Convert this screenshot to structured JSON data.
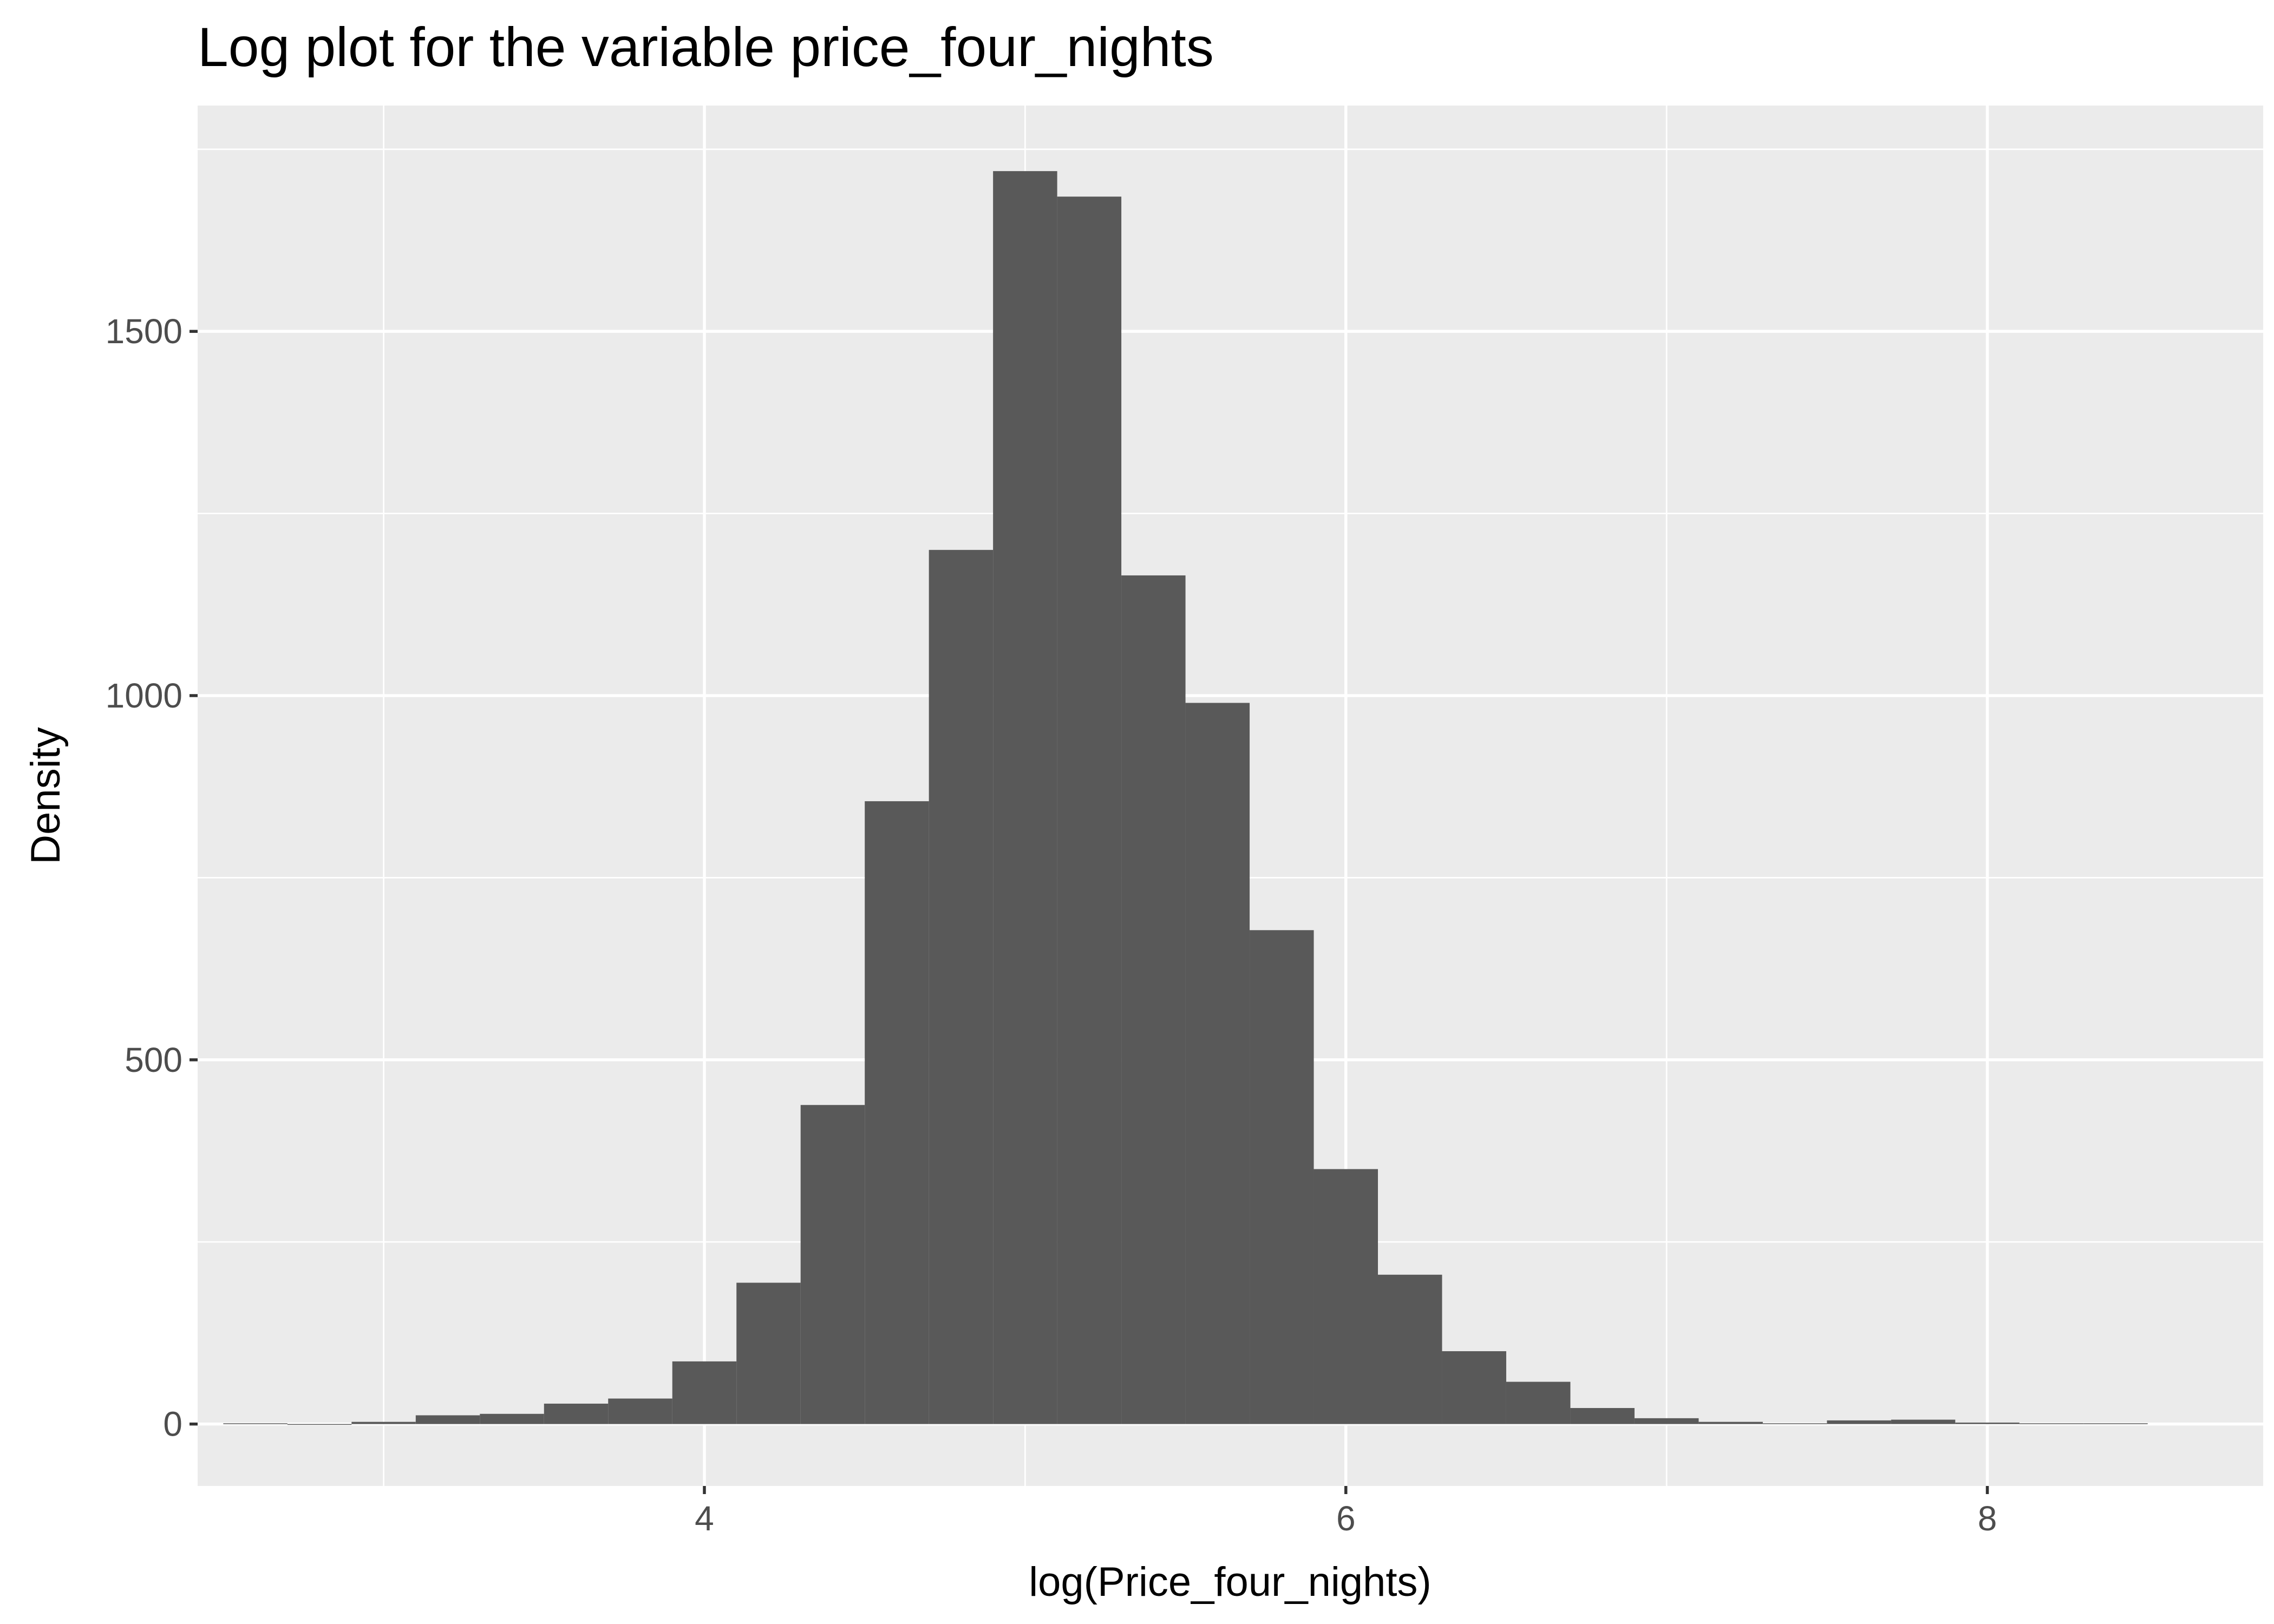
{
  "chart_data": {
    "type": "bar",
    "title": "Log plot for the variable price_four_nights",
    "xlabel": "log(Price_four_nights)",
    "ylabel": "Density",
    "xlim": [
      2.42,
      8.86
    ],
    "ylim": [
      -85,
      1810
    ],
    "x_ticks": [
      4,
      6,
      8
    ],
    "x_minor_ticks": [
      3,
      5,
      7
    ],
    "x_tick_labels": [
      "4",
      "6",
      "8"
    ],
    "y_ticks": [
      0,
      500,
      1000,
      1500
    ],
    "y_minor_ticks": [
      250,
      750,
      1250,
      1750
    ],
    "y_tick_labels": [
      "0",
      "500",
      "1000",
      "1500"
    ],
    "grid": true,
    "bin_width": 0.2,
    "bins_start": [
      2.5,
      2.7,
      2.9,
      3.1,
      3.3,
      3.5,
      3.7,
      3.9,
      4.1,
      4.3,
      4.5,
      4.7,
      4.9,
      5.1,
      5.3,
      5.5,
      5.7,
      5.9,
      6.1,
      6.3,
      6.5,
      6.7,
      6.9,
      7.1,
      7.3,
      7.5,
      7.7,
      7.9,
      8.1,
      8.3
    ],
    "values": [
      1,
      0,
      3,
      12,
      14,
      28,
      35,
      86,
      194,
      438,
      855,
      1200,
      1720,
      1685,
      1165,
      990,
      678,
      350,
      205,
      100,
      58,
      22,
      8,
      3,
      1,
      5,
      6,
      2,
      1,
      1
    ],
    "colors": {
      "bar": "#595959",
      "panel": "#ebebeb",
      "grid": "#ffffff"
    }
  }
}
